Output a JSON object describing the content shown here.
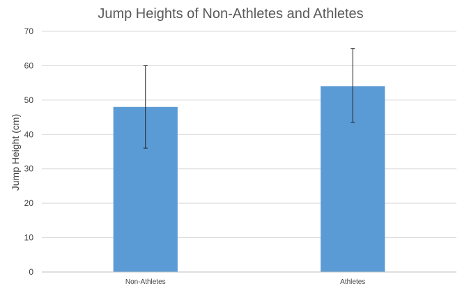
{
  "chart_data": {
    "type": "bar",
    "title": "Jump Heights of Non-Athletes and Athletes",
    "xlabel": "",
    "ylabel": "Jump Height (cm)",
    "categories": [
      "Non-Athletes",
      "Athletes"
    ],
    "values": [
      48,
      54
    ],
    "error_bars": [
      {
        "low": 36,
        "high": 60
      },
      {
        "low": 43.5,
        "high": 65
      }
    ],
    "ylim": [
      0,
      70
    ],
    "yticks": [
      0,
      10,
      20,
      30,
      40,
      50,
      60,
      70
    ],
    "grid": true,
    "legend": "none",
    "bar_color": "#5b9bd5"
  }
}
